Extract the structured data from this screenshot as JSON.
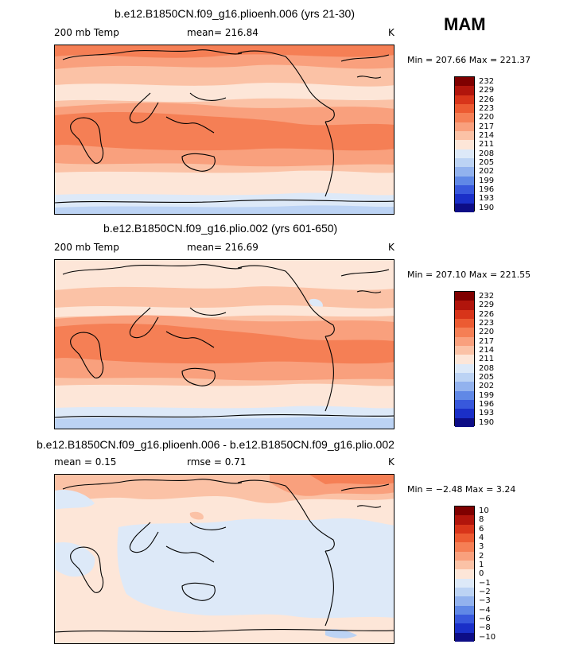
{
  "season": "MAM",
  "panels": [
    {
      "title": "b.e12.B1850CN.f09_g16.plioenh.006 (yrs 21-30)",
      "left_label": "200 mb Temp",
      "center_label": "mean= 216.84",
      "units": "K",
      "minmax": "Min = 207.66 Max = 221.37",
      "colorbar_labels": [
        "232",
        "229",
        "226",
        "223",
        "220",
        "217",
        "214",
        "211",
        "208",
        "205",
        "202",
        "199",
        "196",
        "193",
        "190"
      ]
    },
    {
      "title": "b.e12.B1850CN.f09_g16.plio.002 (yrs 601-650)",
      "left_label": "200 mb Temp",
      "center_label": "mean= 216.69",
      "units": "K",
      "minmax": "Min = 207.10 Max = 221.55",
      "colorbar_labels": [
        "232",
        "229",
        "226",
        "223",
        "220",
        "217",
        "214",
        "211",
        "208",
        "205",
        "202",
        "199",
        "196",
        "193",
        "190"
      ]
    },
    {
      "title": "b.e12.B1850CN.f09_g16.plioenh.006 - b.e12.B1850CN.f09_g16.plio.002",
      "left_label": "mean =    0.15",
      "center_label": "rmse =    0.71",
      "units": "K",
      "minmax": "Min =  −2.48 Max =    3.24",
      "colorbar_labels": [
        "10",
        "8",
        "6",
        "4",
        "3",
        "2",
        "1",
        "0",
        "−1",
        "−2",
        "−3",
        "−4",
        "−6",
        "−8",
        "−10"
      ]
    }
  ],
  "colors": {
    "scale": [
      "#7f0000",
      "#b1150c",
      "#d8351a",
      "#ec5b32",
      "#f57f55",
      "#f9a07d",
      "#fbc2a6",
      "#fde6d8",
      "#dde9f8",
      "#bcd3f4",
      "#92b2ee",
      "#6088e6",
      "#3858dc",
      "#1a2fc8",
      "#0d0d86"
    ],
    "outline": "#000000"
  }
}
